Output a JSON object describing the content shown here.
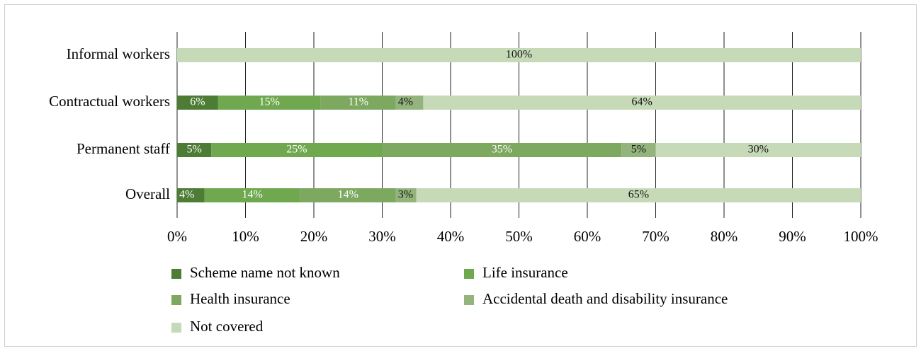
{
  "chart_data": {
    "type": "stacked_barh",
    "categories": [
      "Informal workers",
      "Contractual workers",
      "Permanent staff",
      "Overall"
    ],
    "series": [
      {
        "name": "Scheme name not known",
        "color": "#4d7c34",
        "values": [
          0,
          6,
          5,
          4
        ],
        "value_labels": [
          null,
          "6%",
          "5%",
          "4%"
        ]
      },
      {
        "name": "Life insurance",
        "color": "#6fa84e",
        "values": [
          0,
          15,
          25,
          14
        ],
        "value_labels": [
          null,
          "15%",
          "25%",
          "14%"
        ]
      },
      {
        "name": "Health insurance",
        "color": "#7ca860",
        "values": [
          0,
          11,
          35,
          14
        ],
        "value_labels": [
          null,
          "11%",
          "35%",
          "14%"
        ]
      },
      {
        "name": "Accidental death and disability insurance",
        "color": "#93b47c",
        "values": [
          0,
          4,
          5,
          3
        ],
        "value_labels": [
          null,
          "4%",
          "5%",
          "3%"
        ]
      },
      {
        "name": "Not covered",
        "color": "#c6dab7",
        "values": [
          100,
          64,
          30,
          65
        ],
        "value_labels": [
          "100%",
          "64%",
          "30%",
          "65%"
        ]
      }
    ],
    "xlim": [
      0,
      100
    ],
    "xticks": [
      {
        "value": 0,
        "label": "0%"
      },
      {
        "value": 10,
        "label": "10%"
      },
      {
        "value": 20,
        "label": "20%"
      },
      {
        "value": 30,
        "label": "30%"
      },
      {
        "value": 40,
        "label": "40%"
      },
      {
        "value": 50,
        "label": "50%"
      },
      {
        "value": 60,
        "label": "60%"
      },
      {
        "value": 70,
        "label": "70%"
      },
      {
        "value": 80,
        "label": "80%"
      },
      {
        "value": 90,
        "label": "90%"
      },
      {
        "value": 100,
        "label": "100%"
      }
    ],
    "grid": true
  }
}
